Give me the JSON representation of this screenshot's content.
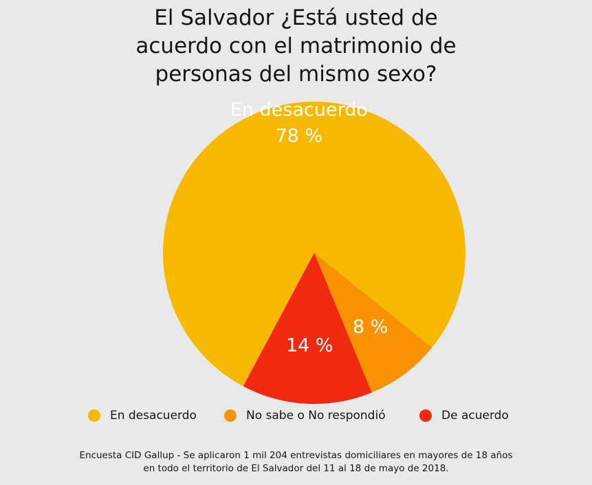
{
  "title_lines": [
    "El Salvador ¿Está usted de",
    "acuerdo con el matrimonio de",
    "personas del mismo sexo?"
  ],
  "chart_data": {
    "type": "pie",
    "title": "El Salvador ¿Está usted de acuerdo con el matrimonio de personas del mismo sexo?",
    "categories": [
      "En desacuerdo",
      "No sabe o No respondió",
      "De acuerdo"
    ],
    "values": [
      78,
      8,
      14
    ],
    "unit": "%",
    "colors": [
      "#f6b800",
      "#f99200",
      "#ef2a10"
    ],
    "slice_labels": [
      [
        "En desacuerdo",
        "78 %"
      ],
      [
        "8 %"
      ],
      [
        "14 %"
      ]
    ],
    "legend_position": "bottom"
  },
  "legend": [
    {
      "label": "En desacuerdo",
      "color": "#f6b800"
    },
    {
      "label": "No sabe o No respondió",
      "color": "#f99200"
    },
    {
      "label": "De acuerdo",
      "color": "#ef2a10"
    }
  ],
  "footnote_lines": [
    "Encuesta CID Gallup - Se aplicaron 1 mil 204 entrevistas domiciliares en mayores de 18 años",
    "en todo el territorio de El Salvador del 11 al 18 de mayo de 2018."
  ]
}
